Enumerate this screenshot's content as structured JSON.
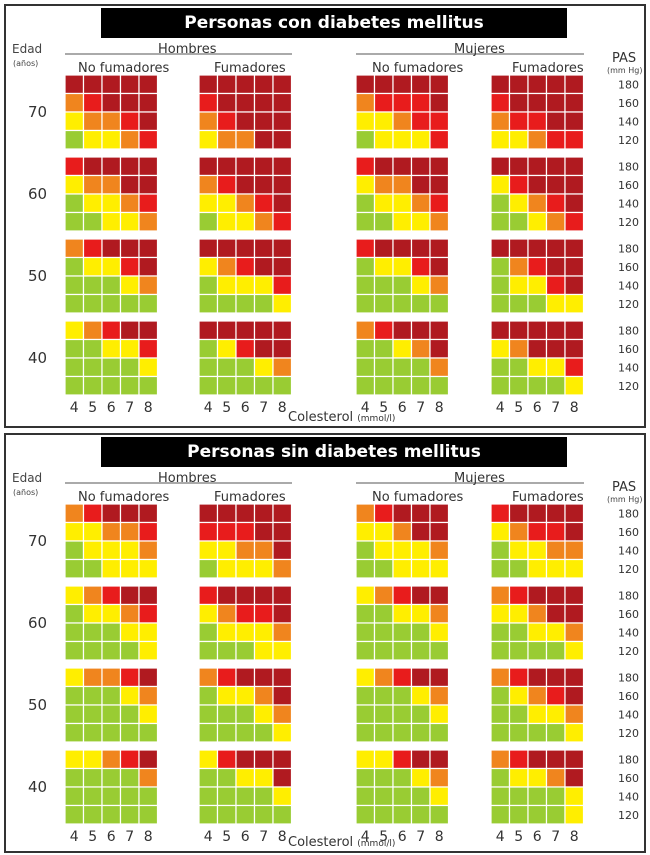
{
  "labels": {
    "age": "Edad",
    "age_unit": "(años)",
    "men": "Hombres",
    "women": "Mujeres",
    "non_smokers": "No fumadores",
    "smokers": "Fumadores",
    "pas": "PAS",
    "pas_unit": "(mm Hg)",
    "cholesterol": "Colesterol",
    "cholesterol_unit": "(mmol/l)"
  },
  "colors": {
    "green": "#99cc33",
    "yellow": "#ffee00",
    "orange": "#f0851e",
    "red": "#e81c1c",
    "darkred": "#b01a20"
  },
  "chart_data": [
    {
      "type": "heatmap",
      "title": "Personas con diabetes mellitus",
      "cholesterol_ticks": [
        "4",
        "5",
        "6",
        "7",
        "8"
      ],
      "pas_ticks": [
        "180",
        "160",
        "140",
        "120"
      ],
      "age_groups": [
        "70",
        "60",
        "50",
        "40"
      ],
      "legend": {
        "G": "green",
        "Y": "yellow",
        "O": "orange",
        "R": "red",
        "D": "darkred"
      },
      "grids": {
        "men_non_smokers": {
          "70": [
            "DDDDD",
            "ORDDD",
            "YOORD",
            "GYYOR"
          ],
          "60": [
            "RDDDD",
            "YOODD",
            "GYYOR",
            "GGYYO"
          ],
          "50": [
            "ORDDD",
            "GYYRD",
            "GGGYO",
            "GGGGG"
          ],
          "40": [
            "YORDD",
            "GGYYR",
            "GGGGY",
            "GGGGG"
          ]
        },
        "men_smokers": {
          "70": [
            "DDDDD",
            "RDDDD",
            "ORDDD",
            "YOODD"
          ],
          "60": [
            "DDDDD",
            "ORDDD",
            "YYORD",
            "GYYOR"
          ],
          "50": [
            "DDDDD",
            "YORDD",
            "GYYYR",
            "GGGGY"
          ],
          "40": [
            "DDDDD",
            "GYRDD",
            "GGGYO",
            "GGGGG"
          ]
        },
        "women_non_smokers": {
          "70": [
            "DDDDD",
            "ORRRD",
            "YYORR",
            "GYYYR"
          ],
          "60": [
            "RDDDD",
            "YOODD",
            "GYYOR",
            "GGYYO"
          ],
          "50": [
            "RDDDD",
            "GYYRD",
            "GGGYO",
            "GGGGG"
          ],
          "40": [
            "ORDDD",
            "GGYOD",
            "GGGGO",
            "GGGGG"
          ]
        },
        "women_smokers": {
          "70": [
            "DDDDD",
            "RDDDD",
            "ORRDD",
            "YYORR"
          ],
          "60": [
            "DDDDD",
            "YRDDD",
            "GYORD",
            "GGYOR"
          ],
          "50": [
            "DDDDD",
            "GORDD",
            "GYYRD",
            "GGGYY"
          ],
          "40": [
            "DDDDD",
            "YODDD",
            "GGYYR",
            "GGGGY"
          ]
        }
      }
    },
    {
      "type": "heatmap",
      "title": "Personas sin diabetes mellitus",
      "cholesterol_ticks": [
        "4",
        "5",
        "6",
        "7",
        "8"
      ],
      "pas_ticks": [
        "180",
        "160",
        "140",
        "120"
      ],
      "age_groups": [
        "70",
        "60",
        "50",
        "40"
      ],
      "legend": {
        "G": "green",
        "Y": "yellow",
        "O": "orange",
        "R": "red",
        "D": "darkred"
      },
      "grids": {
        "men_non_smokers": {
          "70": [
            "ORDDD",
            "YYOOR",
            "GYYYO",
            "GGYYY"
          ],
          "60": [
            "YORDD",
            "GYYOR",
            "GGGYY",
            "GGGGY"
          ],
          "50": [
            "YOORD",
            "GGGYO",
            "GGGGY",
            "GGGGG"
          ],
          "40": [
            "YYORD",
            "GGGGO",
            "GGGGG",
            "GGGGG"
          ]
        },
        "men_smokers": {
          "70": [
            "DDDDD",
            "RRRDD",
            "YYOOD",
            "GYYYO"
          ],
          "60": [
            "RDDDD",
            "YORRD",
            "GYYYO",
            "GGGYY"
          ],
          "50": [
            "ORDDD",
            "GYYOD",
            "GGGYO",
            "GGGGY"
          ],
          "40": [
            "YRDDD",
            "GGYYD",
            "GGGGY",
            "GGGGG"
          ]
        },
        "women_non_smokers": {
          "70": [
            "ORDDD",
            "YYODD",
            "GYYYO",
            "GGYYY"
          ],
          "60": [
            "YORDD",
            "GGYYO",
            "GGGGY",
            "GGGGG"
          ],
          "50": [
            "YORDD",
            "GGGYO",
            "GGGGY",
            "GGGGG"
          ],
          "40": [
            "YYRDD",
            "GGGYO",
            "GGGGY",
            "GGGGG"
          ]
        },
        "women_smokers": {
          "70": [
            "RDDDD",
            "YORRD",
            "GYYOO",
            "GGYYY"
          ],
          "60": [
            "ORDDD",
            "YYODD",
            "GGYYO",
            "GGGGY"
          ],
          "50": [
            "ORDDD",
            "GYORD",
            "GGYYO",
            "GGGGY"
          ],
          "40": [
            "ORDDD",
            "GYYOD",
            "GGGGY",
            "GGGGY"
          ]
        }
      }
    }
  ]
}
